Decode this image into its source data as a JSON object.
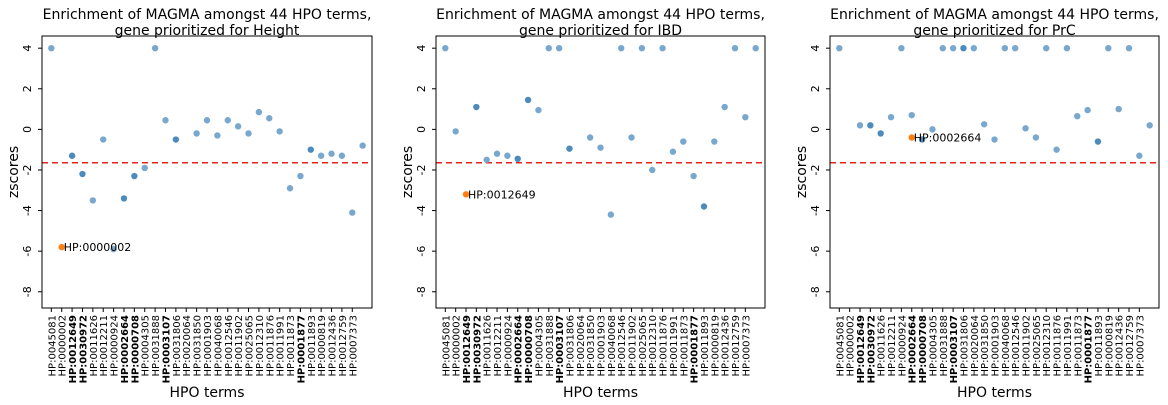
{
  "colors": {
    "point": "#6a9fc9",
    "point_bold": "#3a7eb5",
    "highlight": "#ff7f0e",
    "threshold": "#e8211b",
    "axis": "#000000",
    "background": "#ffffff"
  },
  "shared": {
    "ylabel": "zscores",
    "xlabel": "HPO terms",
    "ylim": [
      -8.8,
      4.6
    ],
    "yticks": [
      4,
      2,
      0,
      -2,
      -4,
      -6,
      -8
    ],
    "threshold": -1.645,
    "xticks": [
      "HP:0045081",
      "HP:0000002",
      "HP:0012649",
      "HP:0030972",
      "HP:0011626",
      "HP:0012211",
      "HP:0000924",
      "HP:0002664",
      "HP:0000708",
      "HP:0004305",
      "HP:0031888",
      "HP:0003107",
      "HP:0031806",
      "HP:0020064",
      "HP:0031850",
      "HP:0001903",
      "HP:0040068",
      "HP:0012546",
      "HP:0011902",
      "HP:0025065",
      "HP:0012310",
      "HP:0011876",
      "HP:0011991",
      "HP:0011873",
      "HP:0001877",
      "HP:0011893",
      "HP:0000819",
      "HP:0012436",
      "HP:0012759",
      "HP:0007373"
    ],
    "bold_ticks": [
      "HP:0012649",
      "HP:0030972",
      "HP:0002664",
      "HP:0000708",
      "HP:0003107",
      "HP:0001877"
    ]
  },
  "chart_data": [
    {
      "type": "scatter",
      "title": "Enrichment of MAGMA amongst 44 HPO terms,\ngene prioritized for Height",
      "highlight": {
        "label": "HP:0000002",
        "x": 2,
        "y": -5.8
      },
      "points": [
        {
          "x": 1,
          "y": 4.0
        },
        {
          "x": 2,
          "y": -5.8
        },
        {
          "x": 3,
          "y": -1.3,
          "bold": true
        },
        {
          "x": 4,
          "y": -2.2,
          "bold": true
        },
        {
          "x": 5,
          "y": -3.5
        },
        {
          "x": 6,
          "y": -0.5
        },
        {
          "x": 7,
          "y": -5.9
        },
        {
          "x": 8,
          "y": -3.4,
          "bold": true
        },
        {
          "x": 9,
          "y": -2.3,
          "bold": true
        },
        {
          "x": 10,
          "y": -1.9
        },
        {
          "x": 11,
          "y": 4.0
        },
        {
          "x": 12,
          "y": 0.45
        },
        {
          "x": 13,
          "y": -0.5,
          "bold": true
        },
        {
          "x": 15,
          "y": -0.2
        },
        {
          "x": 16,
          "y": 0.45
        },
        {
          "x": 17,
          "y": -0.3
        },
        {
          "x": 18,
          "y": 0.45
        },
        {
          "x": 19,
          "y": 0.15
        },
        {
          "x": 20,
          "y": -0.2
        },
        {
          "x": 21,
          "y": 0.85
        },
        {
          "x": 22,
          "y": 0.55
        },
        {
          "x": 23,
          "y": -0.1
        },
        {
          "x": 24,
          "y": -2.9
        },
        {
          "x": 25,
          "y": -2.3
        },
        {
          "x": 26,
          "y": -1.0,
          "bold": true
        },
        {
          "x": 27,
          "y": -1.3
        },
        {
          "x": 28,
          "y": -1.2
        },
        {
          "x": 29,
          "y": -1.3
        },
        {
          "x": 30,
          "y": -4.1
        },
        {
          "x": 31,
          "y": -0.8
        }
      ]
    },
    {
      "type": "scatter",
      "title": "Enrichment of MAGMA amongst 44 HPO terms,\ngene prioritized for IBD",
      "highlight": {
        "label": "HP:0012649",
        "x": 3,
        "y": -3.2
      },
      "points": [
        {
          "x": 1,
          "y": 4.0
        },
        {
          "x": 2,
          "y": -0.1
        },
        {
          "x": 3,
          "y": -3.2
        },
        {
          "x": 4,
          "y": 1.1,
          "bold": true
        },
        {
          "x": 5,
          "y": -1.5
        },
        {
          "x": 6,
          "y": -1.2
        },
        {
          "x": 7,
          "y": -1.3
        },
        {
          "x": 8,
          "y": -1.45,
          "bold": true
        },
        {
          "x": 9,
          "y": 1.45,
          "bold": true
        },
        {
          "x": 10,
          "y": 0.95
        },
        {
          "x": 11,
          "y": 4.0
        },
        {
          "x": 12,
          "y": 4.0
        },
        {
          "x": 13,
          "y": -0.95,
          "bold": true
        },
        {
          "x": 15,
          "y": -0.4
        },
        {
          "x": 16,
          "y": -0.9
        },
        {
          "x": 17,
          "y": -4.2
        },
        {
          "x": 18,
          "y": 4.0
        },
        {
          "x": 19,
          "y": -0.4
        },
        {
          "x": 20,
          "y": 4.0
        },
        {
          "x": 21,
          "y": -2.0
        },
        {
          "x": 22,
          "y": 4.0
        },
        {
          "x": 23,
          "y": -1.1
        },
        {
          "x": 24,
          "y": -0.6
        },
        {
          "x": 25,
          "y": -2.3
        },
        {
          "x": 26,
          "y": -3.8,
          "bold": true
        },
        {
          "x": 27,
          "y": -0.6
        },
        {
          "x": 28,
          "y": 1.1
        },
        {
          "x": 29,
          "y": 4.0
        },
        {
          "x": 30,
          "y": 0.6
        },
        {
          "x": 31,
          "y": 4.0
        }
      ]
    },
    {
      "type": "scatter",
      "title": "Enrichment of MAGMA amongst 44 HPO terms,\ngene prioritized for PrC",
      "highlight": {
        "label": "HP:0002664",
        "x": 8,
        "y": -0.4
      },
      "points": [
        {
          "x": 1,
          "y": 4.0
        },
        {
          "x": 3,
          "y": 0.2
        },
        {
          "x": 4,
          "y": 0.2,
          "bold": true
        },
        {
          "x": 5,
          "y": -0.2,
          "bold": true
        },
        {
          "x": 6,
          "y": 0.6
        },
        {
          "x": 7,
          "y": 4.0
        },
        {
          "x": 8,
          "y": 0.7
        },
        {
          "x": 8,
          "y": -0.4
        },
        {
          "x": 9,
          "y": -0.5,
          "bold": true
        },
        {
          "x": 10,
          "y": 0.0
        },
        {
          "x": 11,
          "y": 4.0
        },
        {
          "x": 12,
          "y": 4.0
        },
        {
          "x": 13,
          "y": 4.0,
          "bold": true
        },
        {
          "x": 14,
          "y": 4.0
        },
        {
          "x": 15,
          "y": 0.25
        },
        {
          "x": 16,
          "y": -0.5
        },
        {
          "x": 17,
          "y": 4.0
        },
        {
          "x": 18,
          "y": 4.0
        },
        {
          "x": 19,
          "y": 0.05
        },
        {
          "x": 20,
          "y": -0.4
        },
        {
          "x": 21,
          "y": 4.0
        },
        {
          "x": 22,
          "y": -1.0
        },
        {
          "x": 23,
          "y": 4.0
        },
        {
          "x": 24,
          "y": 0.65
        },
        {
          "x": 25,
          "y": 0.95
        },
        {
          "x": 26,
          "y": -0.6,
          "bold": true
        },
        {
          "x": 27,
          "y": 4.0
        },
        {
          "x": 28,
          "y": 1.0
        },
        {
          "x": 29,
          "y": 4.0
        },
        {
          "x": 30,
          "y": -1.3
        },
        {
          "x": 31,
          "y": 0.2
        }
      ]
    }
  ]
}
